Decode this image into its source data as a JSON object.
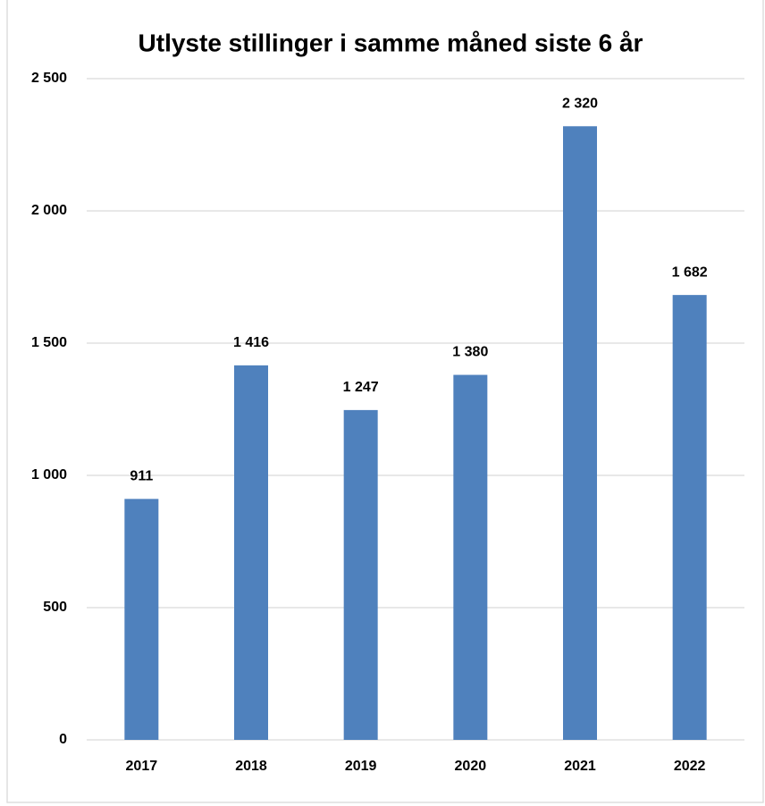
{
  "chart_data": {
    "type": "bar",
    "title": "Utlyste stillinger i samme måned siste 6 år",
    "categories": [
      "2017",
      "2018",
      "2019",
      "2020",
      "2021",
      "2022"
    ],
    "values": [
      911,
      1416,
      1247,
      1380,
      2320,
      1682
    ],
    "value_labels": [
      "911",
      "1 416",
      "1 247",
      "1 380",
      "2 320",
      "1 682"
    ],
    "color": "#4f81bd",
    "ylim": [
      0,
      2500
    ],
    "yticks": [
      0,
      500,
      {
        "value": 1000,
        "label": "1 000"
      },
      {
        "value": 1500,
        "label": "1 500"
      },
      {
        "value": 2000,
        "label": "2 000"
      },
      {
        "value": 2500,
        "label": "2 500"
      }
    ],
    "grid": true
  }
}
